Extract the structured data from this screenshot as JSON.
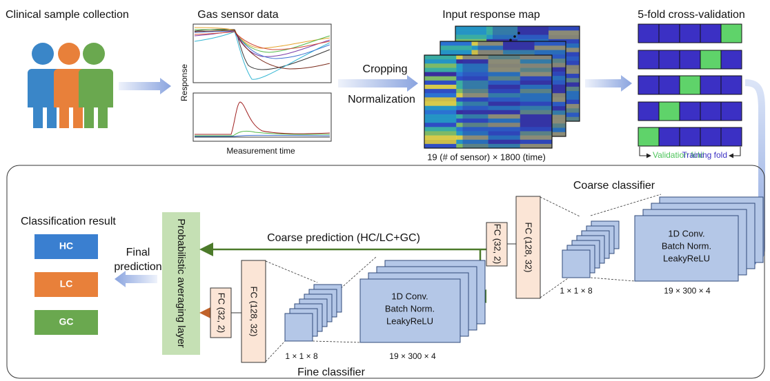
{
  "sample_collection": {
    "title": "Clinical sample collection"
  },
  "sensor_data": {
    "title": "Gas sensor data",
    "y_label": "Response",
    "x_label": "Measurement time"
  },
  "preprocessing": {
    "steps": [
      "Cropping",
      "Normalization"
    ]
  },
  "response_map": {
    "title": "Input response map",
    "caption": "19 (# of sensor) × 1800 (time)"
  },
  "cross_validation": {
    "title": "5-fold cross-validation",
    "validation_label": "Validation fold",
    "training_label": "Training fold"
  },
  "coarse_classifier": {
    "title": "Coarse classifier",
    "fc_layers": [
      "FC (128, 32)",
      "FC (32, 2)"
    ],
    "conv_block": [
      "1D Conv.",
      "Batch Norm.",
      "LeakyReLU"
    ],
    "feature_shape": "19 × 300 × 4",
    "pooled_shape": "1 × 1 × 8",
    "prediction": "Coarse prediction (HC/LC+GC)"
  },
  "fine_classifier": {
    "title": "Fine classifier",
    "fc_layers": [
      "FC (128, 32)",
      "FC (32, 2)"
    ],
    "conv_block": [
      "1D Conv.",
      "Batch Norm.",
      "LeakyReLU"
    ],
    "feature_shape": "19 × 300 × 4",
    "pooled_shape": "1 × 1 × 8"
  },
  "averaging_layer": {
    "label": "Probabilistic averaging layer"
  },
  "classification_result": {
    "title": "Classification result",
    "classes": [
      "HC",
      "LC",
      "GC"
    ]
  },
  "final_prediction": {
    "lines": [
      "Final",
      "prediction"
    ]
  }
}
